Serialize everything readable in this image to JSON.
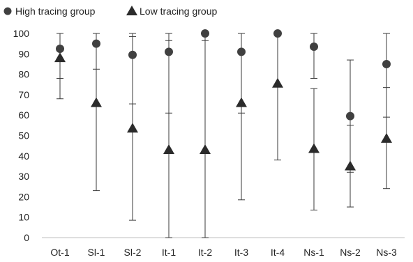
{
  "chart_data": {
    "type": "scatter",
    "title": "",
    "xlabel": "",
    "ylabel": "",
    "categories": [
      "Ot-1",
      "Sl-1",
      "Sl-2",
      "It-1",
      "It-2",
      "It-3",
      "It-4",
      "Ns-1",
      "Ns-2",
      "Ns-3"
    ],
    "ylim": [
      0,
      100
    ],
    "yticks": [
      0,
      10,
      20,
      30,
      40,
      50,
      60,
      70,
      80,
      90,
      100
    ],
    "grid": false,
    "legend_position": "top-left",
    "error_bars": true,
    "series": [
      {
        "name": "High tracing group",
        "marker": "circle",
        "color": "#404040",
        "values": [
          92.5,
          95,
          89.5,
          91,
          100,
          91,
          100,
          93.5,
          59.5,
          85
        ],
        "error_low": [
          78,
          82.5,
          65.5,
          61,
          96.5,
          61,
          100,
          78,
          32,
          59
        ],
        "error_high": [
          100,
          100,
          98.5,
          96.5,
          100,
          100,
          100,
          100,
          87,
          100
        ]
      },
      {
        "name": "Low tracing group",
        "marker": "triangle",
        "color": "#2b2b2b",
        "values": [
          88,
          66,
          53.5,
          43,
          43,
          66,
          75.5,
          43.5,
          35,
          48.5
        ],
        "error_low": [
          68,
          23,
          8.5,
          0,
          0,
          18.5,
          38,
          13.5,
          15,
          24
        ],
        "error_high": [
          100,
          100,
          100,
          100,
          100,
          100,
          100,
          73,
          55,
          73.5
        ]
      }
    ]
  }
}
